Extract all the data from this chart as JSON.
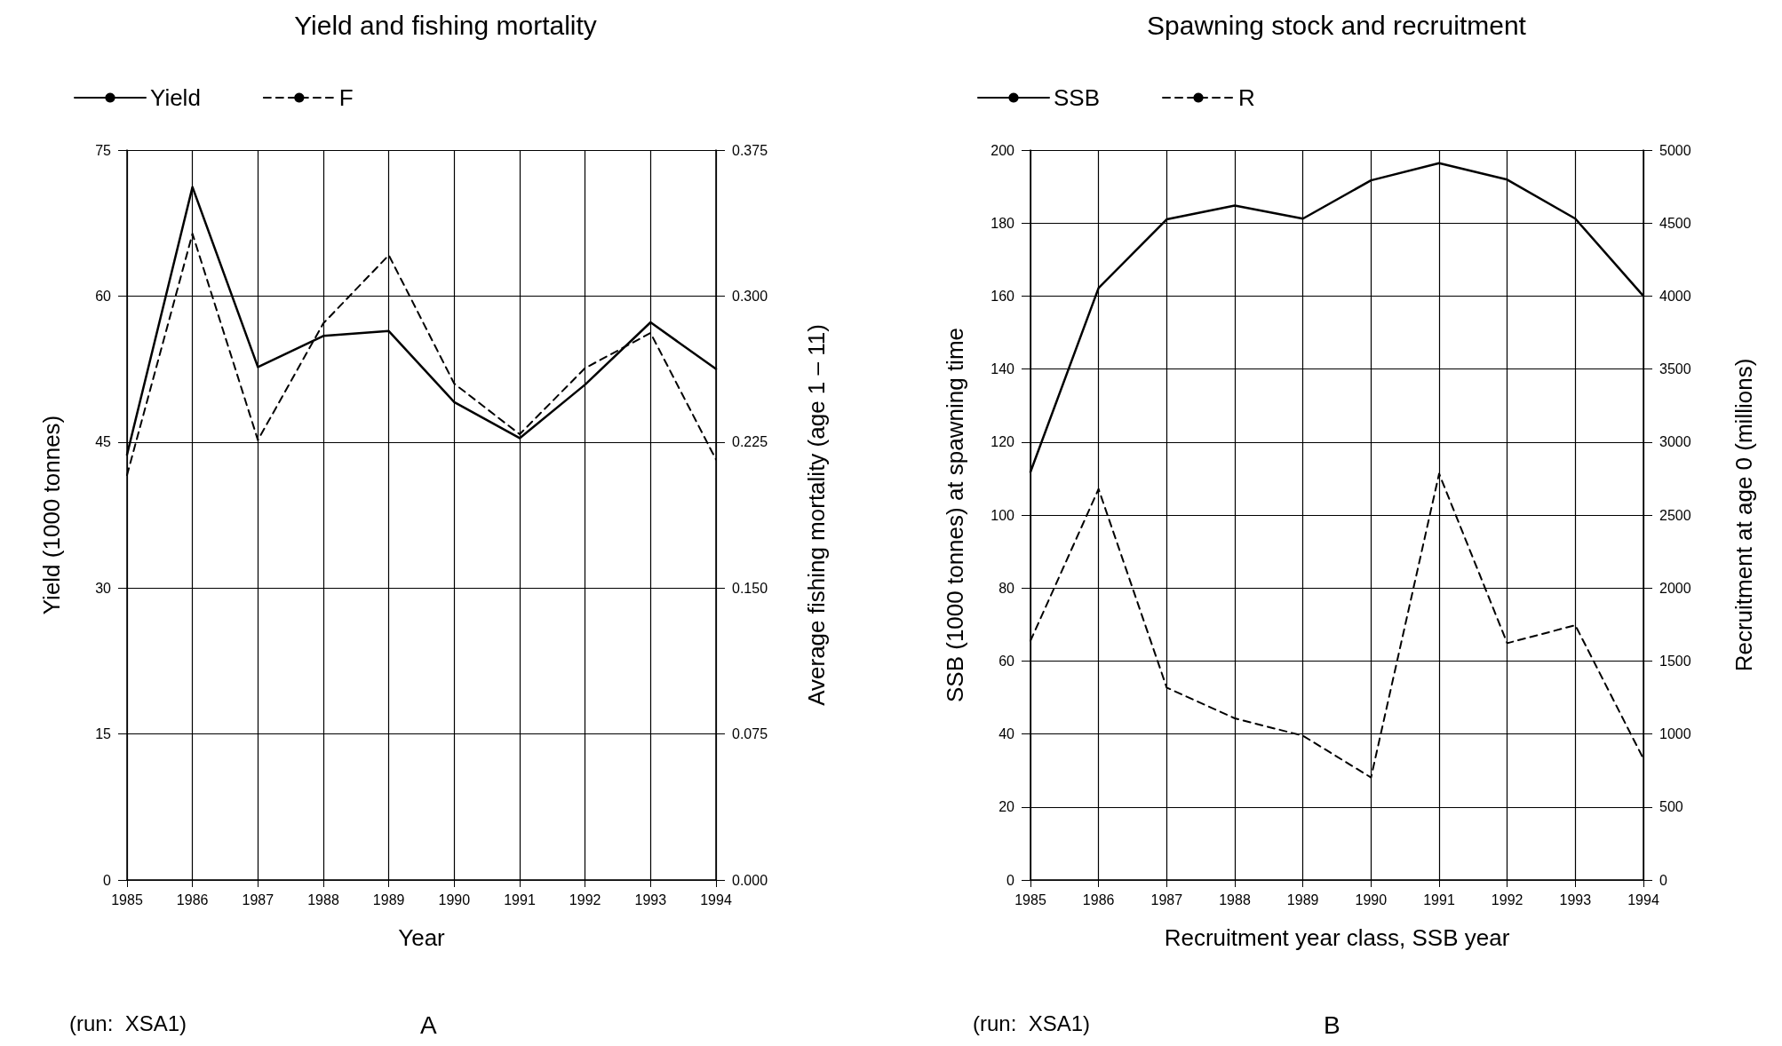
{
  "chart_data": [
    {
      "type": "line",
      "title": "Yield and fishing mortality",
      "xlabel": "Year",
      "ylabel": "Yield (1000 tonnes)",
      "y2label": "Average fishing mortality (age 1 – 11)",
      "x": [
        1985,
        1986,
        1987,
        1988,
        1989,
        1990,
        1991,
        1992,
        1993,
        1994
      ],
      "series": [
        {
          "name": "Yield",
          "color": "#000000",
          "line_style": "solid",
          "values": [
            43.7,
            71.2,
            52.7,
            55.9,
            56.4,
            49.1,
            45.4,
            50.9,
            57.3,
            52.5
          ]
        },
        {
          "name": "F",
          "color": "#000000",
          "line_style": "dashed",
          "axis": "y2",
          "values": [
            0.208,
            0.332,
            0.226,
            0.286,
            0.321,
            0.255,
            0.229,
            0.263,
            0.281,
            0.216
          ]
        }
      ],
      "xlim": [
        1985,
        1994
      ],
      "xticks": [
        1985,
        1986,
        1987,
        1988,
        1989,
        1990,
        1991,
        1992,
        1993,
        1994
      ],
      "ylim": [
        0,
        75
      ],
      "yticks": [
        0,
        15,
        30,
        45,
        60,
        75
      ],
      "y2lim": [
        0,
        0.375
      ],
      "y2ticks": [
        {
          "value": 0,
          "label": "0.000"
        },
        0.075,
        {
          "value": 0.15,
          "label": "0.150"
        },
        0.225,
        {
          "value": 0.3,
          "label": "0.300"
        },
        0.375
      ],
      "grid": true,
      "legend": "top left",
      "marker": "none",
      "annotations": [
        "(run:  XSA1)",
        "A"
      ]
    },
    {
      "type": "line",
      "title": "Spawning stock and recruitment",
      "xlabel": "Recruitment year class, SSB year",
      "ylabel": "SSB (1000 tonnes) at spawning time",
      "y2label": "Recruitment at age 0 (millions)",
      "x": [
        1985,
        1986,
        1987,
        1988,
        1989,
        1990,
        1991,
        1992,
        1993,
        1994
      ],
      "series": [
        {
          "name": "SSB",
          "color": "#000000",
          "line_style": "solid",
          "values": [
            111.8,
            162.2,
            181.0,
            184.8,
            181.2,
            191.7,
            196.4,
            191.9,
            181.2,
            160.0
          ]
        },
        {
          "name": "R",
          "color": "#000000",
          "line_style": "dashed",
          "axis": "y2",
          "values": [
            1638,
            2678,
            1318,
            1107,
            988,
            702,
            2783,
            1622,
            1745,
            830
          ]
        }
      ],
      "xlim": [
        1985,
        1994
      ],
      "xticks": [
        1985,
        1986,
        1987,
        1988,
        1989,
        1990,
        1991,
        1992,
        1993,
        1994
      ],
      "ylim": [
        0,
        200
      ],
      "yticks": [
        0,
        20,
        40,
        60,
        80,
        100,
        120,
        140,
        160,
        180,
        200
      ],
      "y2lim": [
        0,
        5000
      ],
      "y2ticks": [
        0,
        500,
        1000,
        1500,
        2000,
        2500,
        3000,
        3500,
        4000,
        4500,
        5000
      ],
      "grid": true,
      "legend": "top left",
      "marker": "none",
      "annotations": [
        "(run:  XSA1)",
        "B"
      ]
    }
  ]
}
